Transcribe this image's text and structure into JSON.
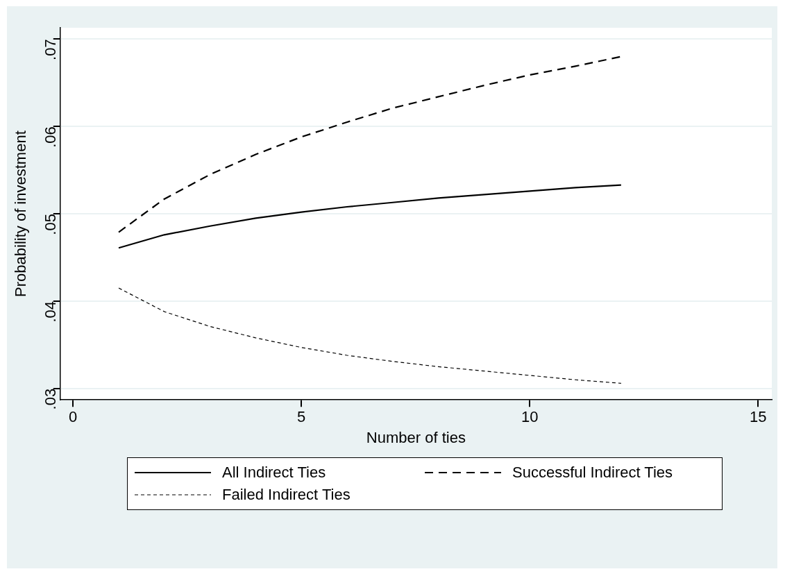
{
  "chart_data": {
    "type": "line",
    "xlabel": "Number of ties",
    "ylabel": "Probability of investment",
    "x": [
      1,
      2,
      3,
      4,
      5,
      6,
      7,
      8,
      9,
      10,
      11,
      12
    ],
    "series": [
      {
        "name": "All Indirect Ties",
        "color": "#000000",
        "line_style": "solid",
        "values": [
          0.0461,
          0.0476,
          0.0486,
          0.0495,
          0.0502,
          0.0508,
          0.0513,
          0.0518,
          0.0522,
          0.0526,
          0.053,
          0.0533
        ]
      },
      {
        "name": "Successful Indirect Ties",
        "color": "#000000",
        "line_style": "dashed",
        "values": [
          0.0479,
          0.0517,
          0.0545,
          0.0568,
          0.0588,
          0.0605,
          0.0621,
          0.0634,
          0.0647,
          0.0659,
          0.0669,
          0.068
        ]
      },
      {
        "name": "Failed Indirect Ties",
        "color": "#000000",
        "line_style": "dotted",
        "values": [
          0.0415,
          0.0388,
          0.0371,
          0.0358,
          0.0347,
          0.0338,
          0.0331,
          0.0325,
          0.032,
          0.0315,
          0.031,
          0.0306
        ]
      }
    ],
    "xlim": [
      -0.28,
      15.3
    ],
    "xticks": [
      0,
      5,
      10,
      15
    ],
    "ylim": [
      0.0287,
      0.0713
    ],
    "yticks": [
      {
        "value": 0.03,
        "label": ".03"
      },
      {
        "value": 0.04,
        "label": ".04"
      },
      {
        "value": 0.05,
        "label": ".05"
      },
      {
        "value": 0.06,
        "label": ".06"
      },
      {
        "value": 0.07,
        "label": ".07"
      }
    ],
    "grid": "y",
    "legend": "bottom",
    "marker": "none"
  }
}
